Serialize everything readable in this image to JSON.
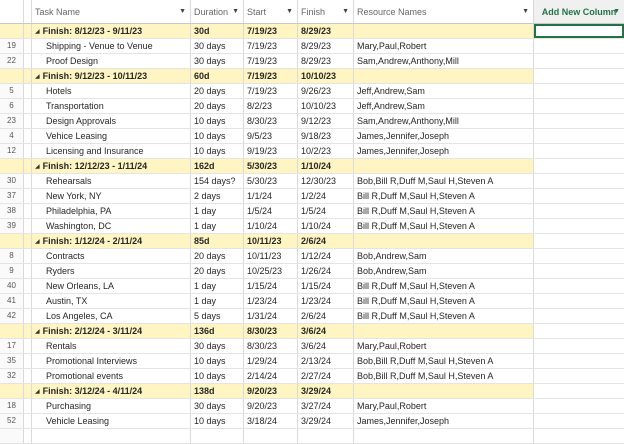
{
  "columns": {
    "task_name": "Task Name",
    "duration": "Duration",
    "start": "Start",
    "finish": "Finish",
    "resources": "Resource Names",
    "add_new": "Add New Column"
  },
  "icons": {
    "header_dropdown": "chevron-down-icon",
    "group_collapse": "collapse-triangle-icon"
  },
  "colors": {
    "group_fill": "#fff5c2",
    "selection": "#217346"
  },
  "rows": [
    {
      "type": "group",
      "name": "Finish: 8/12/23 - 9/11/23",
      "duration": "30d",
      "start": "7/19/23",
      "finish": "8/29/23"
    },
    {
      "type": "task",
      "id": "19",
      "name": "Shipping - Venue to Venue",
      "duration": "30 days",
      "start": "7/19/23",
      "finish": "8/29/23",
      "resources": "Mary,Paul,Robert"
    },
    {
      "type": "task",
      "id": "22",
      "name": "Proof Design",
      "duration": "30 days",
      "start": "7/19/23",
      "finish": "8/29/23",
      "resources": "Sam,Andrew,Anthony,Mill"
    },
    {
      "type": "group",
      "name": "Finish: 9/12/23 - 10/11/23",
      "duration": "60d",
      "start": "7/19/23",
      "finish": "10/10/23"
    },
    {
      "type": "task",
      "id": "5",
      "name": "Hotels",
      "duration": "20 days",
      "start": "7/19/23",
      "finish": "9/26/23",
      "resources": "Jeff,Andrew,Sam"
    },
    {
      "type": "task",
      "id": "6",
      "name": "Transportation",
      "duration": "20 days",
      "start": "8/2/23",
      "finish": "10/10/23",
      "resources": "Jeff,Andrew,Sam"
    },
    {
      "type": "task",
      "id": "23",
      "name": "Design Approvals",
      "duration": "10 days",
      "start": "8/30/23",
      "finish": "9/12/23",
      "resources": "Sam,Andrew,Anthony,Mill"
    },
    {
      "type": "task",
      "id": "4",
      "name": "Vehice Leasing",
      "duration": "10 days",
      "start": "9/5/23",
      "finish": "9/18/23",
      "resources": "James,Jennifer,Joseph"
    },
    {
      "type": "task",
      "id": "12",
      "name": "Licensing and Insurance",
      "duration": "10 days",
      "start": "9/19/23",
      "finish": "10/2/23",
      "resources": "James,Jennifer,Joseph"
    },
    {
      "type": "group",
      "name": "Finish: 12/12/23 - 1/11/24",
      "duration": "162d",
      "start": "5/30/23",
      "finish": "1/10/24"
    },
    {
      "type": "task",
      "id": "30",
      "name": "Rehearsals",
      "duration": "154 days?",
      "start": "5/30/23",
      "finish": "12/30/23",
      "resources": "Bob,Bill R,Duff M,Saul H,Steven A"
    },
    {
      "type": "task",
      "id": "37",
      "name": "New York, NY",
      "duration": "2 days",
      "start": "1/1/24",
      "finish": "1/2/24",
      "resources": "Bill R,Duff M,Saul H,Steven A"
    },
    {
      "type": "task",
      "id": "38",
      "name": "Philadelphia, PA",
      "duration": "1 day",
      "start": "1/5/24",
      "finish": "1/5/24",
      "resources": "Bill R,Duff M,Saul H,Steven A"
    },
    {
      "type": "task",
      "id": "39",
      "name": "Washington, DC",
      "duration": "1 day",
      "start": "1/10/24",
      "finish": "1/10/24",
      "resources": "Bill R,Duff M,Saul H,Steven A"
    },
    {
      "type": "group",
      "name": "Finish: 1/12/24 - 2/11/24",
      "duration": "85d",
      "start": "10/11/23",
      "finish": "2/6/24"
    },
    {
      "type": "task",
      "id": "8",
      "name": "Contracts",
      "duration": "20 days",
      "start": "10/11/23",
      "finish": "1/12/24",
      "resources": "Bob,Andrew,Sam"
    },
    {
      "type": "task",
      "id": "9",
      "name": "Ryders",
      "duration": "20 days",
      "start": "10/25/23",
      "finish": "1/26/24",
      "resources": "Bob,Andrew,Sam"
    },
    {
      "type": "task",
      "id": "40",
      "name": "New Orleans, LA",
      "duration": "1 day",
      "start": "1/15/24",
      "finish": "1/15/24",
      "resources": "Bill R,Duff M,Saul H,Steven A"
    },
    {
      "type": "task",
      "id": "41",
      "name": "Austin, TX",
      "duration": "1 day",
      "start": "1/23/24",
      "finish": "1/23/24",
      "resources": "Bill R,Duff M,Saul H,Steven A"
    },
    {
      "type": "task",
      "id": "42",
      "name": "Los Angeles, CA",
      "duration": "5 days",
      "start": "1/31/24",
      "finish": "2/6/24",
      "resources": "Bill R,Duff M,Saul H,Steven A"
    },
    {
      "type": "group",
      "name": "Finish: 2/12/24 - 3/11/24",
      "duration": "136d",
      "start": "8/30/23",
      "finish": "3/6/24"
    },
    {
      "type": "task",
      "id": "17",
      "name": "Rentals",
      "duration": "30 days",
      "start": "8/30/23",
      "finish": "3/6/24",
      "resources": "Mary,Paul,Robert"
    },
    {
      "type": "task",
      "id": "35",
      "name": "Promotional Interviews",
      "duration": "10 days",
      "start": "1/29/24",
      "finish": "2/13/24",
      "resources": "Bob,Bill R,Duff M,Saul H,Steven A"
    },
    {
      "type": "task",
      "id": "32",
      "name": "Promotional events",
      "duration": "10 days",
      "start": "2/14/24",
      "finish": "2/27/24",
      "resources": "Bob,Bill R,Duff M,Saul H,Steven A"
    },
    {
      "type": "group",
      "name": "Finish: 3/12/24 - 4/11/24",
      "duration": "138d",
      "start": "9/20/23",
      "finish": "3/29/24"
    },
    {
      "type": "task",
      "id": "18",
      "name": "Purchasing",
      "duration": "30 days",
      "start": "9/20/23",
      "finish": "3/27/24",
      "resources": "Mary,Paul,Robert"
    },
    {
      "type": "task",
      "id": "52",
      "name": "Vehicle Leasing",
      "duration": "10 days",
      "start": "3/18/24",
      "finish": "3/29/24",
      "resources": "James,Jennifer,Joseph"
    },
    {
      "type": "task",
      "id": "",
      "name": "",
      "duration": "",
      "start": "",
      "finish": "",
      "resources": ""
    }
  ]
}
